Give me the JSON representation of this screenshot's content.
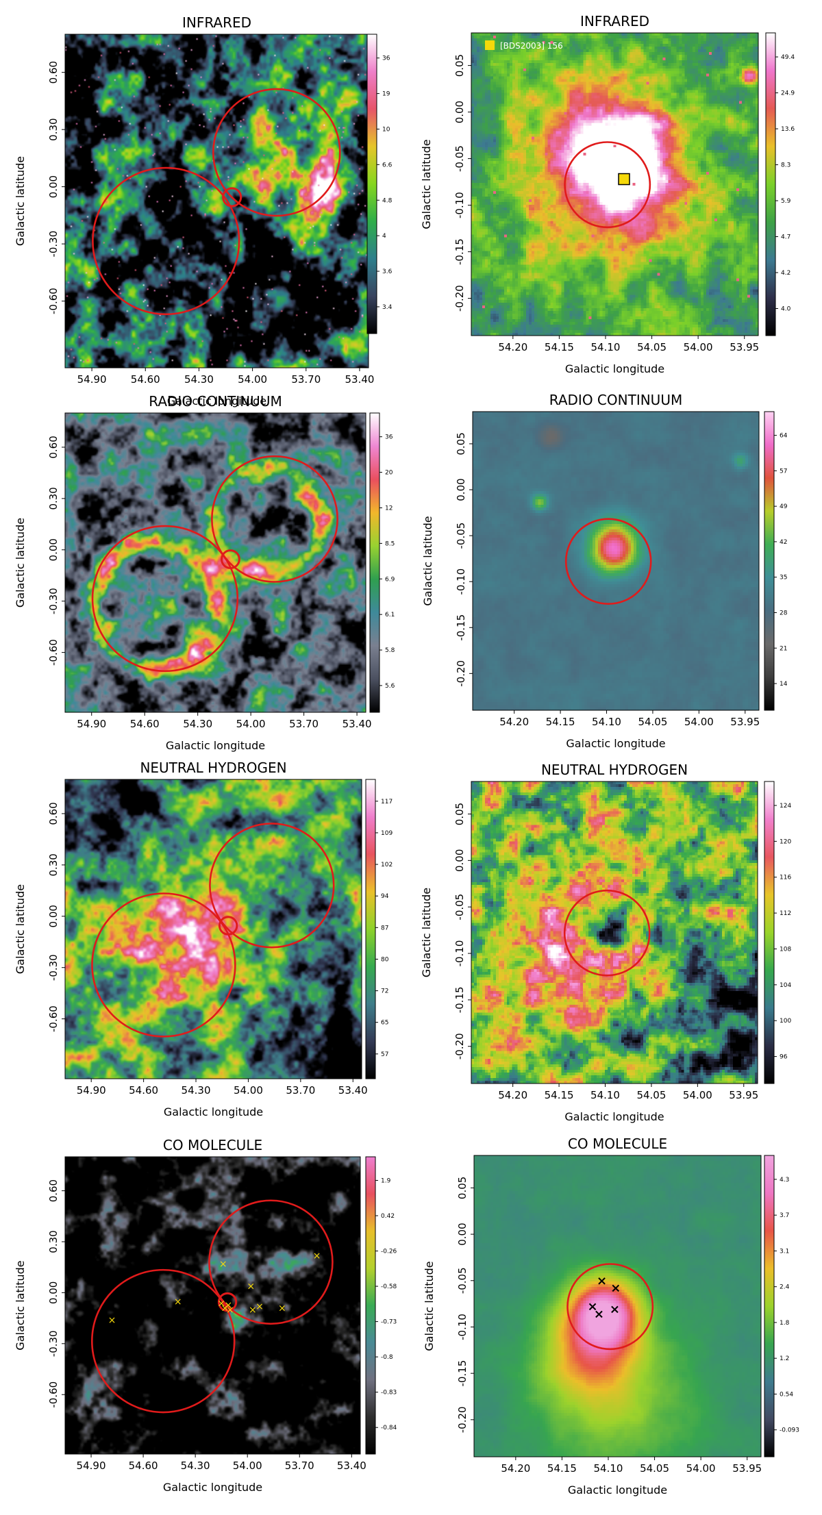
{
  "figure": {
    "panels": [
      {
        "id": "ir-wide",
        "title": "INFRARED",
        "xlabel": "Galactic longitude",
        "ylabel": "Galactic latitude",
        "xticks": [
          "54.90",
          "54.60",
          "54.30",
          "54.00",
          "53.70",
          "53.40"
        ],
        "yticks": [
          "0.60",
          "0.30",
          "0.00",
          "-0.30",
          "-0.60"
        ],
        "colorbar_ticks": [
          "36",
          "19",
          "10",
          "6.6",
          "4.8",
          "4",
          "3.6",
          "3.4"
        ],
        "legend": []
      },
      {
        "id": "ir-zoom",
        "title": "INFRARED",
        "xlabel": "Galactic longitude",
        "ylabel": "Galactic latitude",
        "xticks": [
          "54.20",
          "54.15",
          "54.10",
          "54.05",
          "54.00",
          "53.95"
        ],
        "yticks": [
          "0.05",
          "0.00",
          "-0.05",
          "-0.10",
          "-0.15",
          "-0.20"
        ],
        "colorbar_ticks": [
          "49.4",
          "24.9",
          "13.6",
          "8.3",
          "5.9",
          "4.7",
          "4.2",
          "4.0"
        ],
        "legend": [
          "[BDS2003] 156"
        ]
      },
      {
        "id": "radio-wide",
        "title": "RADIO CONTINUUM",
        "xlabel": "Galactic longitude",
        "ylabel": "Galactic latitude",
        "xticks": [
          "54.90",
          "54.60",
          "54.30",
          "54.00",
          "53.70",
          "53.40"
        ],
        "yticks": [
          "0.60",
          "0.30",
          "0.00",
          "-0.30",
          "-0.60"
        ],
        "colorbar_ticks": [
          "36",
          "20",
          "12",
          "8.5",
          "6.9",
          "6.1",
          "5.8",
          "5.6"
        ],
        "legend": []
      },
      {
        "id": "radio-zoom",
        "title": "RADIO CONTINUUM",
        "xlabel": "Galactic longitude",
        "ylabel": "Galactic latitude",
        "xticks": [
          "54.20",
          "54.15",
          "54.10",
          "54.05",
          "54.00",
          "53.95"
        ],
        "yticks": [
          "0.05",
          "0.00",
          "-0.05",
          "-0.10",
          "-0.15",
          "-0.20"
        ],
        "colorbar_ticks": [
          "64",
          "57",
          "49",
          "42",
          "35",
          "28",
          "21",
          "14"
        ],
        "legend": []
      },
      {
        "id": "hi-wide",
        "title": "NEUTRAL HYDROGEN",
        "xlabel": "Galactic longitude",
        "ylabel": "Galactic latitude",
        "xticks": [
          "54.90",
          "54.60",
          "54.30",
          "54.00",
          "53.70",
          "53.40"
        ],
        "yticks": [
          "0.60",
          "0.30",
          "0.00",
          "-0.30",
          "-0.60"
        ],
        "colorbar_ticks": [
          "117",
          "109",
          "102",
          "94",
          "87",
          "80",
          "72",
          "65",
          "57"
        ],
        "legend": []
      },
      {
        "id": "hi-zoom",
        "title": "NEUTRAL HYDROGEN",
        "xlabel": "Galactic longitude",
        "ylabel": "Galactic latitude",
        "xticks": [
          "54.20",
          "54.15",
          "54.10",
          "54.05",
          "54.00",
          "53.95"
        ],
        "yticks": [
          "0.05",
          "0.00",
          "-0.05",
          "-0.10",
          "-0.15",
          "-0.20"
        ],
        "colorbar_ticks": [
          "124",
          "120",
          "116",
          "112",
          "108",
          "104",
          "100",
          "96"
        ],
        "legend": []
      },
      {
        "id": "co-wide",
        "title": "CO MOLECULE",
        "xlabel": "Galactic longitude",
        "ylabel": "Galactic latitude",
        "xticks": [
          "54.90",
          "54.60",
          "54.30",
          "54.00",
          "53.70",
          "53.40"
        ],
        "yticks": [
          "0.60",
          "0.30",
          "0.00",
          "-0.30",
          "-0.60"
        ],
        "colorbar_ticks": [
          "1.9",
          "0.42",
          "-0.26",
          "-0.58",
          "-0.73",
          "-0.8",
          "-0.83",
          "-0.84"
        ],
        "legend": []
      },
      {
        "id": "co-zoom",
        "title": "CO MOLECULE",
        "xlabel": "Galactic longitude",
        "ylabel": "Galactic latitude",
        "xticks": [
          "54.20",
          "54.15",
          "54.10",
          "54.05",
          "54.00",
          "53.95"
        ],
        "yticks": [
          "0.05",
          "0.00",
          "-0.05",
          "-0.10",
          "-0.15",
          "-0.20"
        ],
        "colorbar_ticks": [
          "4.3",
          "3.7",
          "3.1",
          "2.4",
          "1.8",
          "1.2",
          "0.54",
          "-0.093"
        ],
        "legend": []
      }
    ],
    "colors": {
      "circle": "#e01b1b",
      "marker_yellow": "#f5d90a",
      "marker_black": "#000000"
    }
  }
}
